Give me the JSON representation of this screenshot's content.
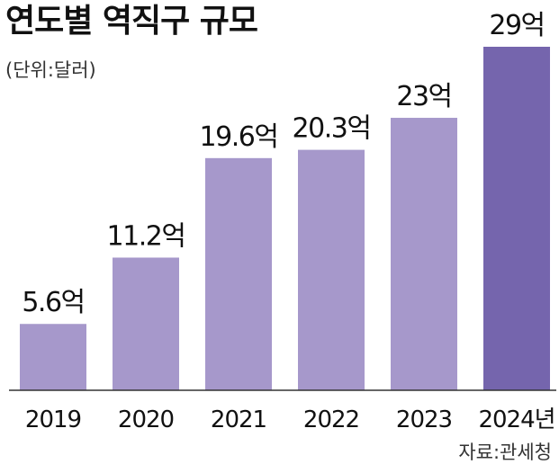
{
  "header": {
    "title": "연도별 역직구 규모",
    "unit": "(단위:달러)"
  },
  "footer": {
    "source": "자료:관세청"
  },
  "colors": {
    "bar": "#a698cb",
    "highlight_bar": "#7565ad",
    "axis": "#333333",
    "text": "#111111"
  },
  "chart_data": {
    "type": "bar",
    "categories": [
      "2019",
      "2020",
      "2021",
      "2022",
      "2023",
      "2024년"
    ],
    "values": [
      5.6,
      11.2,
      19.6,
      20.3,
      23,
      29
    ],
    "data_labels": [
      "5.6억",
      "11.2억",
      "19.6억",
      "20.3억",
      "23억",
      "29억"
    ],
    "highlight_index": 5,
    "title": "연도별 역직구 규모",
    "xlabel": "",
    "ylabel": "",
    "ylim": [
      0,
      29
    ],
    "grid": false,
    "legend": "none"
  }
}
